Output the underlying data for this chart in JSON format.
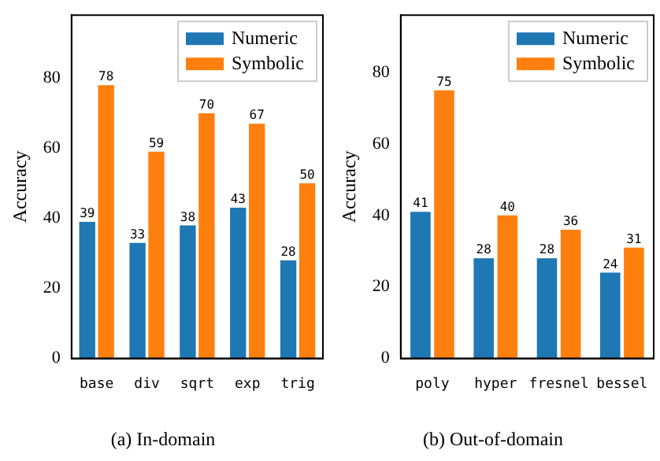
{
  "chart_data": [
    {
      "type": "bar",
      "title": "(a) In-domain",
      "ylabel": "Accuracy",
      "categories": [
        "base",
        "div",
        "sqrt",
        "exp",
        "trig"
      ],
      "series": [
        {
          "name": "Numeric",
          "color": "#1f77b4",
          "values": [
            39,
            33,
            38,
            43,
            28
          ]
        },
        {
          "name": "Symbolic",
          "color": "#ff7f0e",
          "values": [
            78,
            59,
            70,
            67,
            50
          ]
        }
      ],
      "ylim": [
        0,
        98
      ],
      "yticks": [
        0,
        20,
        40,
        60,
        80
      ],
      "grid": false,
      "legend": "top right",
      "data_labels": true
    },
    {
      "type": "bar",
      "title": "(b) Out-of-domain",
      "ylabel": "Accuracy",
      "categories": [
        "poly",
        "hyper",
        "fresnel",
        "bessel"
      ],
      "series": [
        {
          "name": "Numeric",
          "color": "#1f77b4",
          "values": [
            41,
            28,
            28,
            24
          ]
        },
        {
          "name": "Symbolic",
          "color": "#ff7f0e",
          "values": [
            75,
            40,
            36,
            31
          ]
        }
      ],
      "ylim": [
        0,
        96
      ],
      "yticks": [
        0,
        20,
        40,
        60,
        80
      ],
      "grid": false,
      "legend": "top right",
      "data_labels": true
    }
  ]
}
